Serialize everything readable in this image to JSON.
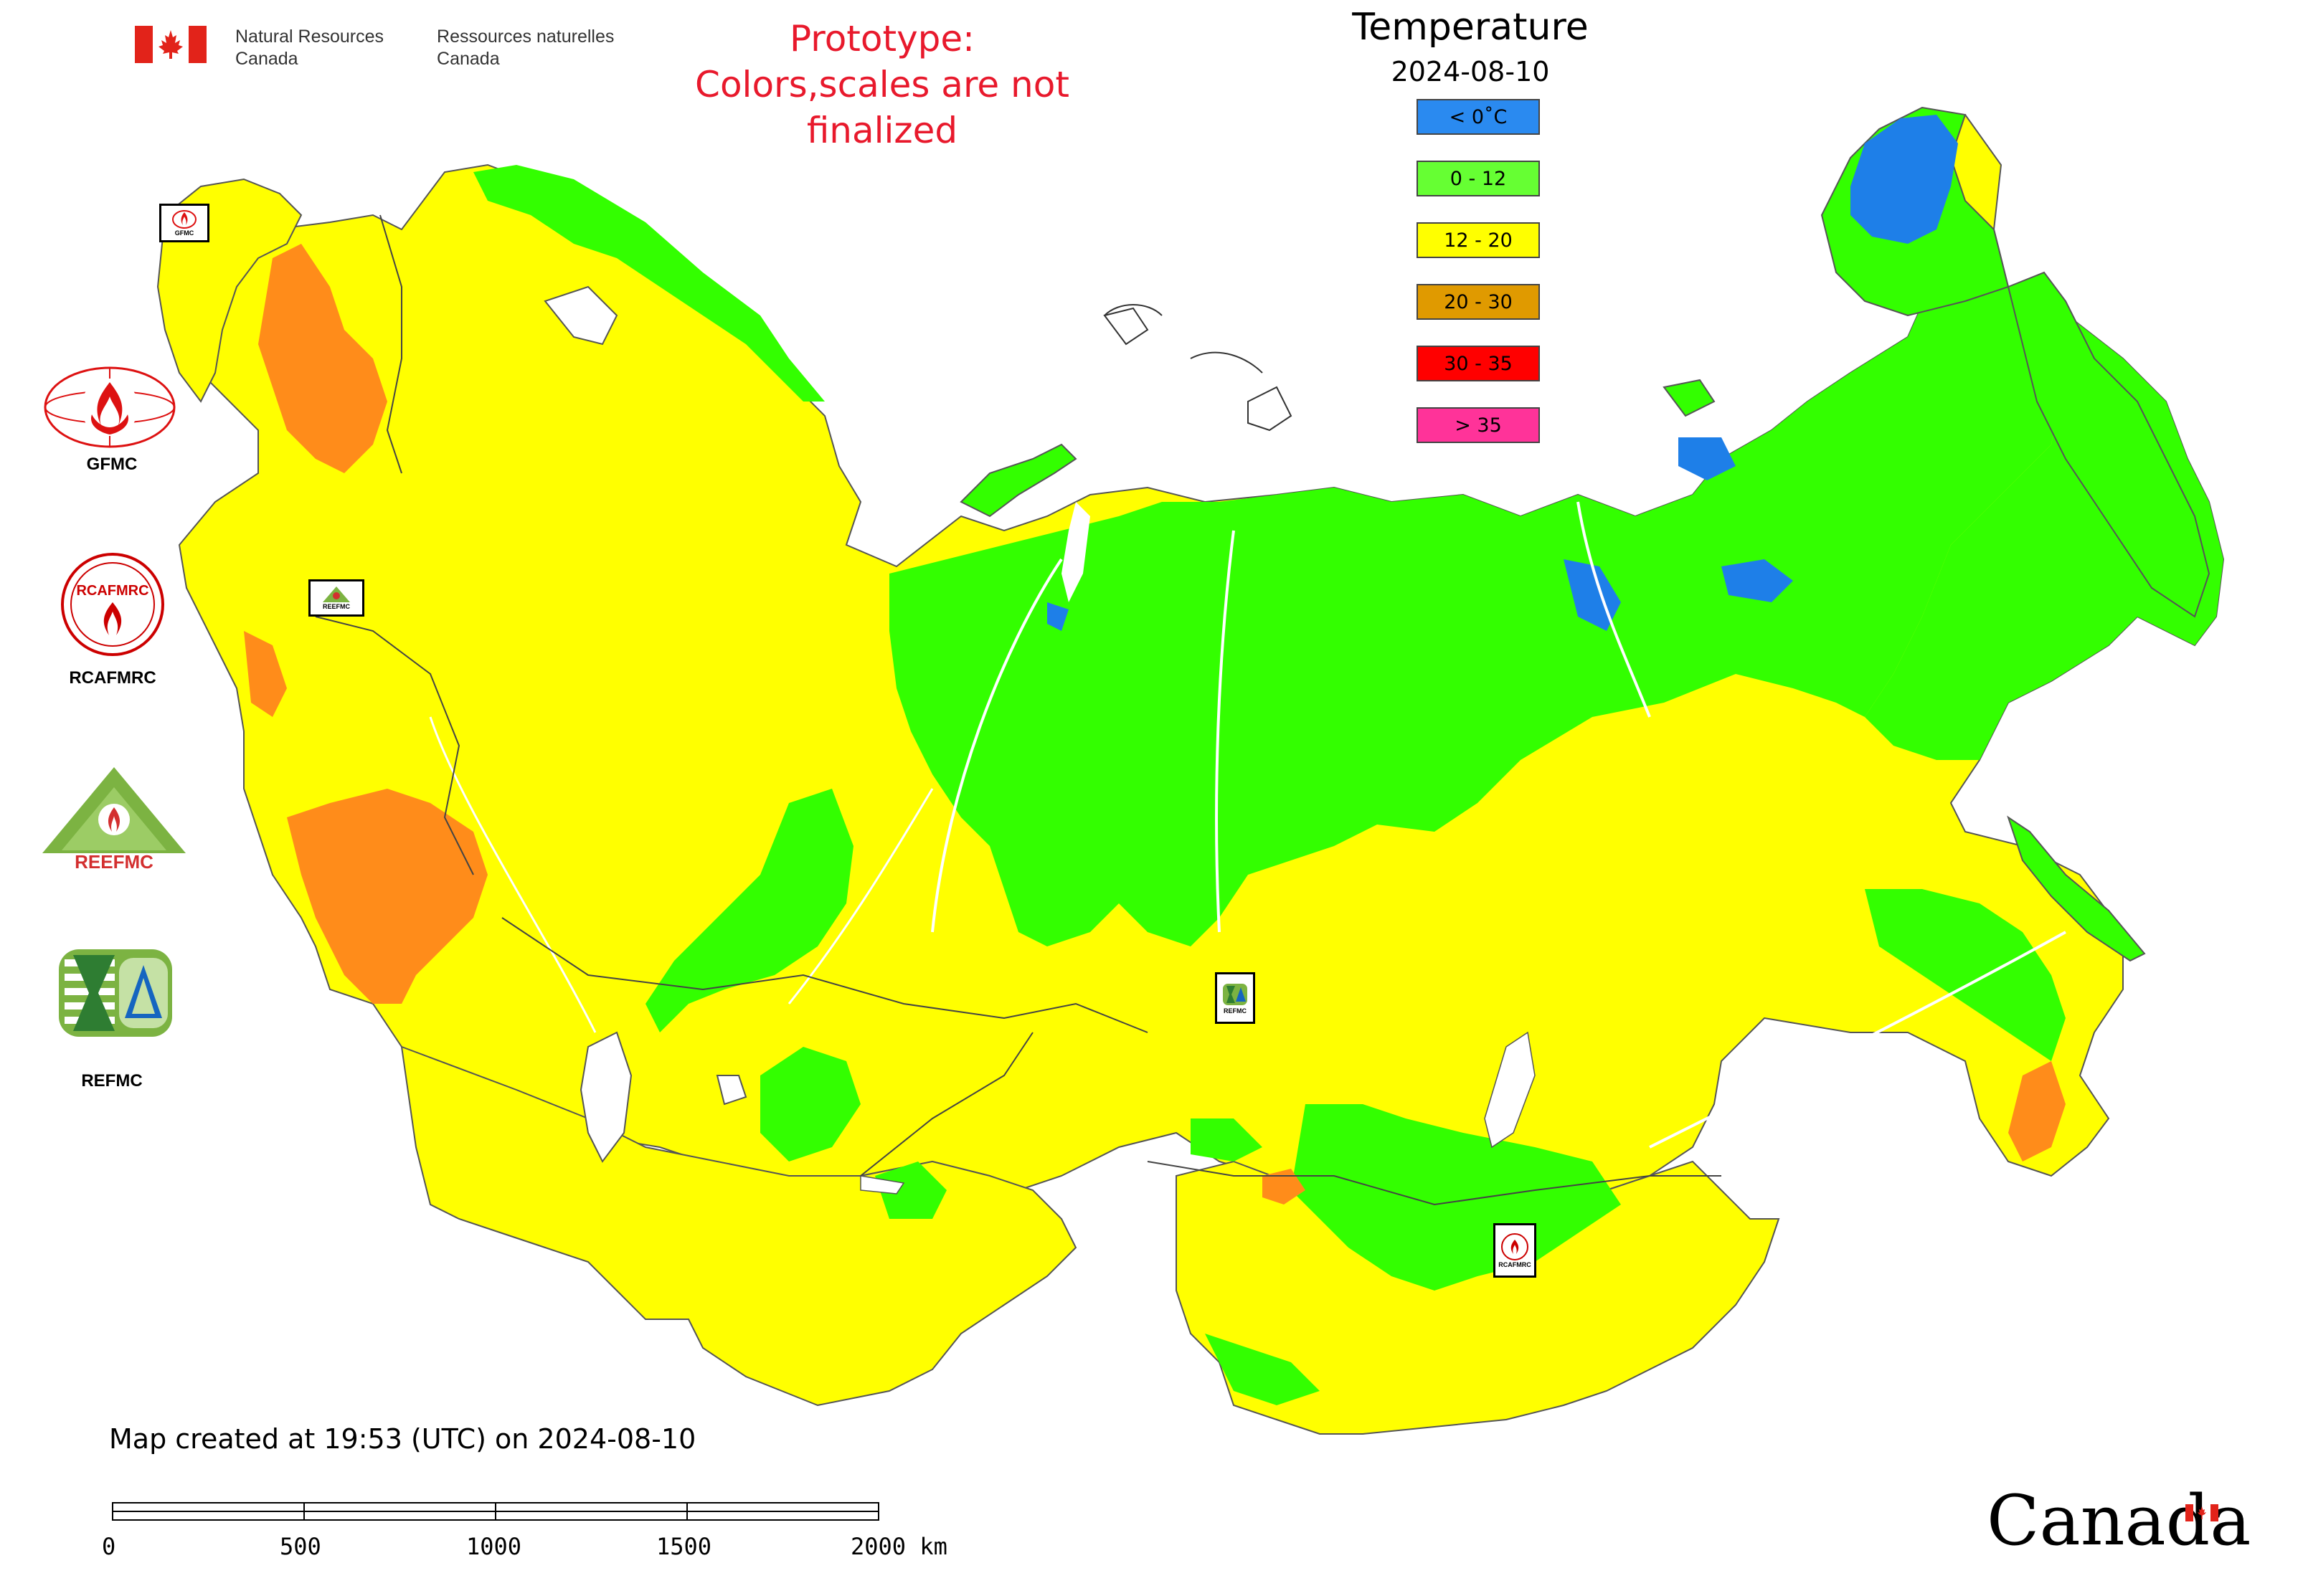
{
  "header": {
    "agency_en_line1": "Natural Resources",
    "agency_en_line2": "Canada",
    "agency_fr_line1": "Ressources naturelles",
    "agency_fr_line2": "Canada",
    "prototype_line1": "Prototype:",
    "prototype_line2": "Colors,scales are not finalized"
  },
  "legend": {
    "title": "Temperature",
    "date": "2024-08-10",
    "items": [
      {
        "label": "< 0˚C",
        "color": "#2a8af0"
      },
      {
        "label": "0 - 12",
        "color": "#66ff33"
      },
      {
        "label": "12 - 20",
        "color": "#ffff00"
      },
      {
        "label": "20 - 30",
        "color": "#e09a00"
      },
      {
        "label": "30 - 35",
        "color": "#ff0000"
      },
      {
        "label": "> 35",
        "color": "#ff3399"
      }
    ]
  },
  "logos": {
    "gfmc": "GFMC",
    "rcafmrc": "RCAFMRC",
    "reefmc": "REEFMC",
    "refmc": "REFMC",
    "rcafmrc_badge": "RCAFMRC",
    "reefmc_badge": "REEFMC"
  },
  "markers": {
    "gfmc": "GFMC",
    "reefmc": "REEFMC",
    "refmc": "REFMC",
    "rcafmrc": "RCAFMRC"
  },
  "footer": {
    "created": "Map created at 19:53 (UTC) on 2024-08-10",
    "scale_ticks": [
      "0",
      "500",
      "1000",
      "1500",
      "2000 km"
    ],
    "canada_wordmark": "Canada"
  },
  "map_colors": {
    "yellow": "#ffff00",
    "green": "#33ff00",
    "orange": "#ff8c1a",
    "blue": "#1e7fe8",
    "border": "#555555"
  }
}
